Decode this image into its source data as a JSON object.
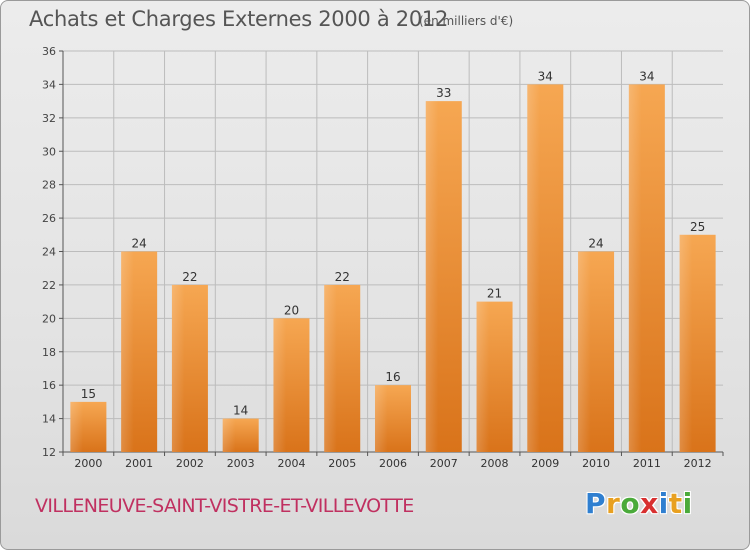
{
  "chart_data": {
    "type": "bar",
    "title": "Achats et Charges Externes 2000 à 2012",
    "subtitle": "(en milliers d'€)",
    "categories": [
      "2000",
      "2001",
      "2002",
      "2003",
      "2004",
      "2005",
      "2006",
      "2007",
      "2008",
      "2009",
      "2010",
      "2011",
      "2012"
    ],
    "values": [
      15,
      24,
      22,
      14,
      20,
      22,
      16,
      33,
      21,
      34,
      24,
      34,
      25
    ],
    "ylim": [
      12,
      36
    ],
    "yticks": [
      12,
      14,
      16,
      18,
      20,
      22,
      24,
      26,
      28,
      30,
      32,
      34,
      36
    ],
    "grid": true,
    "bar_color": "#ef9238",
    "bar_color_dark": "#e07a1a",
    "grid_color": "#bcbcbc"
  },
  "footer": {
    "commune": "VILLENEUVE-SAINT-VISTRE-ET-VILLEVOTTE",
    "commune_color": "#c03060"
  },
  "logo": {
    "letters": [
      {
        "char": "P",
        "color": "#2f7fd0"
      },
      {
        "char": "r",
        "color": "#e8a020"
      },
      {
        "char": "o",
        "color": "#4aaa3a"
      },
      {
        "char": "x",
        "color": "#d83030"
      },
      {
        "char": "i",
        "color": "#2f7fd0"
      },
      {
        "char": "t",
        "color": "#e8a020"
      },
      {
        "char": "i",
        "color": "#4aaa3a"
      }
    ]
  }
}
